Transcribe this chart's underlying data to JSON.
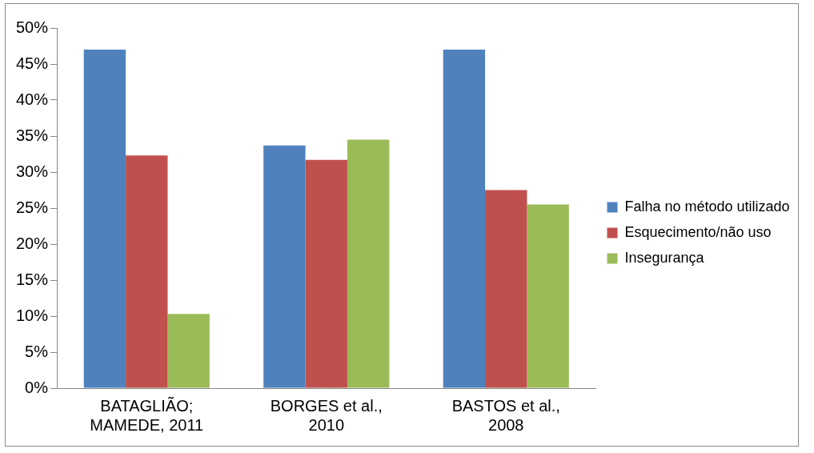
{
  "chart_data": {
    "type": "bar",
    "categories": [
      "BATAGLIÃO; MAMEDE, 2011",
      "BORGES et al., 2010",
      "BASTOS et al., 2008"
    ],
    "series": [
      {
        "name": "Falha no método utilizado",
        "color": "#4f81bd",
        "values": [
          47.0,
          33.7,
          47.0
        ]
      },
      {
        "name": "Esquecimento/não uso",
        "color": "#c0504d",
        "values": [
          32.3,
          31.7,
          27.5
        ]
      },
      {
        "name": "Insegurança",
        "color": "#9bbb59",
        "values": [
          10.3,
          34.5,
          25.5
        ]
      }
    ],
    "ylim": [
      0,
      50
    ],
    "yticks": [
      {
        "value": 0,
        "label": "0%"
      },
      {
        "value": 5,
        "label": "5%"
      },
      {
        "value": 10,
        "label": "10%"
      },
      {
        "value": 15,
        "label": "15%"
      },
      {
        "value": 20,
        "label": "20%"
      },
      {
        "value": 25,
        "label": "25%"
      },
      {
        "value": 30,
        "label": "30%"
      },
      {
        "value": 35,
        "label": "35%"
      },
      {
        "value": 40,
        "label": "40%"
      },
      {
        "value": 45,
        "label": "45%"
      },
      {
        "value": 50,
        "label": "50%"
      }
    ],
    "grid": false,
    "legend": "right"
  }
}
